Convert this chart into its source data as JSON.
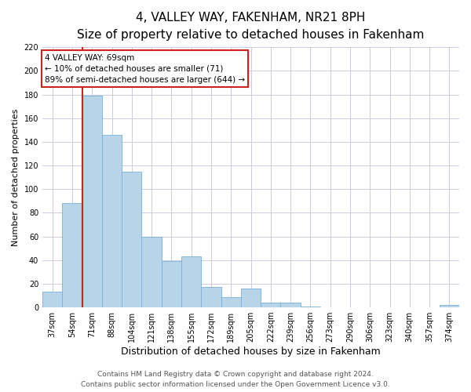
{
  "title": "4, VALLEY WAY, FAKENHAM, NR21 8PH",
  "subtitle": "Size of property relative to detached houses in Fakenham",
  "xlabel": "Distribution of detached houses by size in Fakenham",
  "ylabel": "Number of detached properties",
  "bar_labels": [
    "37sqm",
    "54sqm",
    "71sqm",
    "88sqm",
    "104sqm",
    "121sqm",
    "138sqm",
    "155sqm",
    "172sqm",
    "189sqm",
    "205sqm",
    "222sqm",
    "239sqm",
    "256sqm",
    "273sqm",
    "290sqm",
    "306sqm",
    "323sqm",
    "340sqm",
    "357sqm",
    "374sqm"
  ],
  "bar_values": [
    13,
    88,
    179,
    146,
    115,
    60,
    39,
    43,
    17,
    9,
    16,
    4,
    4,
    1,
    0,
    0,
    0,
    0,
    0,
    0,
    2
  ],
  "bar_color": "#b8d4e8",
  "bar_edge_color": "#7bafd4",
  "highlight_color": "#cc2222",
  "highlight_bar_index": 2,
  "ylim": [
    0,
    220
  ],
  "yticks": [
    0,
    20,
    40,
    60,
    80,
    100,
    120,
    140,
    160,
    180,
    200,
    220
  ],
  "annotation_title": "4 VALLEY WAY: 69sqm",
  "annotation_line1": "← 10% of detached houses are smaller (71)",
  "annotation_line2": "89% of semi-detached houses are larger (644) →",
  "annotation_box_color": "#ffffff",
  "annotation_box_edge": "#cc2222",
  "footer_line1": "Contains HM Land Registry data © Crown copyright and database right 2024.",
  "footer_line2": "Contains public sector information licensed under the Open Government Licence v3.0.",
  "background_color": "#ffffff",
  "grid_color": "#ccccdd",
  "title_fontsize": 11,
  "subtitle_fontsize": 9,
  "xlabel_fontsize": 9,
  "ylabel_fontsize": 8,
  "tick_fontsize": 7,
  "footer_fontsize": 6.5
}
